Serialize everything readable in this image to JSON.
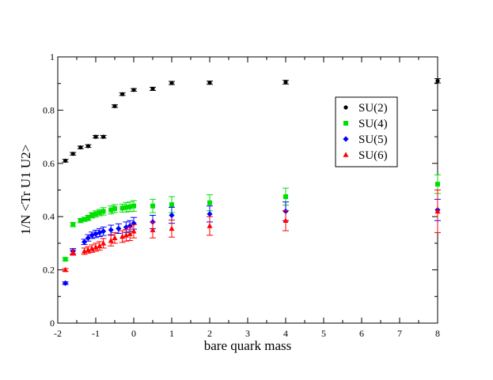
{
  "chart_data": {
    "type": "scatter",
    "title": "",
    "xlabel": "bare quark mass",
    "ylabel": "1/N <Tr U1 U2>",
    "xlim": [
      -2,
      8
    ],
    "ylim": [
      0,
      1
    ],
    "xticks": [
      -2,
      -1,
      0,
      1,
      2,
      3,
      4,
      5,
      6,
      7,
      8
    ],
    "yticks": [
      0,
      0.2,
      0.4,
      0.6,
      0.8,
      1
    ],
    "xtick_labels": [
      "-2",
      "-1",
      "0",
      "1",
      "2",
      "3",
      "4",
      "5",
      "6",
      "7",
      "8"
    ],
    "ytick_labels": [
      "0",
      "0.2",
      "0.4",
      "0.6",
      "0.8",
      "1"
    ],
    "grid": false,
    "legend_position": "top-right",
    "series": [
      {
        "name": "SU(2)",
        "color": "#000000",
        "marker": "circle",
        "x": [
          -1.8,
          -1.6,
          -1.4,
          -1.2,
          -1.0,
          -0.8,
          -0.5,
          -0.3,
          0.0,
          0.5,
          1.0,
          2.0,
          4.0,
          8.0
        ],
        "y": [
          0.61,
          0.636,
          0.66,
          0.665,
          0.7,
          0.7,
          0.815,
          0.86,
          0.876,
          0.88,
          0.902,
          0.903,
          0.905,
          0.91
        ],
        "err": [
          0.005,
          0.005,
          0.005,
          0.005,
          0.005,
          0.005,
          0.005,
          0.005,
          0.005,
          0.006,
          0.006,
          0.006,
          0.007,
          0.008
        ]
      },
      {
        "name": "SU(4)",
        "color": "#00e000",
        "marker": "square",
        "x": [
          -1.8,
          -1.6,
          -1.4,
          -1.3,
          -1.2,
          -1.1,
          -1.0,
          -0.9,
          -0.8,
          -0.6,
          -0.5,
          -0.3,
          -0.2,
          -0.1,
          0.0,
          0.5,
          1.0,
          2.0,
          4.0,
          8.0
        ],
        "y": [
          0.24,
          0.37,
          0.385,
          0.39,
          0.395,
          0.405,
          0.41,
          0.415,
          0.42,
          0.425,
          0.43,
          0.432,
          0.435,
          0.437,
          0.44,
          0.44,
          0.445,
          0.452,
          0.475,
          0.522
        ],
        "err": [
          0.005,
          0.008,
          0.008,
          0.008,
          0.01,
          0.01,
          0.012,
          0.012,
          0.014,
          0.015,
          0.015,
          0.015,
          0.018,
          0.018,
          0.02,
          0.025,
          0.03,
          0.03,
          0.032,
          0.035
        ]
      },
      {
        "name": "SU(5)",
        "color": "#0000ff",
        "marker": "diamond",
        "x": [
          -1.8,
          -1.6,
          -1.3,
          -1.2,
          -1.1,
          -1.0,
          -0.9,
          -0.8,
          -0.6,
          -0.4,
          -0.2,
          -0.1,
          0.0,
          0.5,
          1.0,
          2.0,
          4.0,
          8.0
        ],
        "y": [
          0.15,
          0.27,
          0.305,
          0.32,
          0.33,
          0.335,
          0.34,
          0.345,
          0.35,
          0.355,
          0.36,
          0.365,
          0.375,
          0.38,
          0.405,
          0.41,
          0.42,
          0.425
        ],
        "err": [
          0.005,
          0.01,
          0.01,
          0.012,
          0.012,
          0.014,
          0.015,
          0.016,
          0.018,
          0.018,
          0.02,
          0.02,
          0.022,
          0.025,
          0.03,
          0.03,
          0.035,
          0.04
        ]
      },
      {
        "name": "SU(6)",
        "color": "#ff0000",
        "marker": "triangle",
        "x": [
          -1.8,
          -1.6,
          -1.3,
          -1.2,
          -1.1,
          -1.0,
          -0.9,
          -0.8,
          -0.6,
          -0.5,
          -0.3,
          -0.2,
          -0.1,
          0.0,
          0.5,
          1.0,
          2.0,
          4.0,
          8.0
        ],
        "y": [
          0.2,
          0.265,
          0.27,
          0.275,
          0.28,
          0.285,
          0.29,
          0.3,
          0.31,
          0.32,
          0.325,
          0.33,
          0.335,
          0.345,
          0.35,
          0.355,
          0.365,
          0.385,
          0.42
        ],
        "err": [
          0.005,
          0.01,
          0.012,
          0.012,
          0.014,
          0.015,
          0.016,
          0.018,
          0.02,
          0.02,
          0.022,
          0.022,
          0.025,
          0.025,
          0.03,
          0.032,
          0.035,
          0.038,
          0.08
        ]
      }
    ]
  }
}
